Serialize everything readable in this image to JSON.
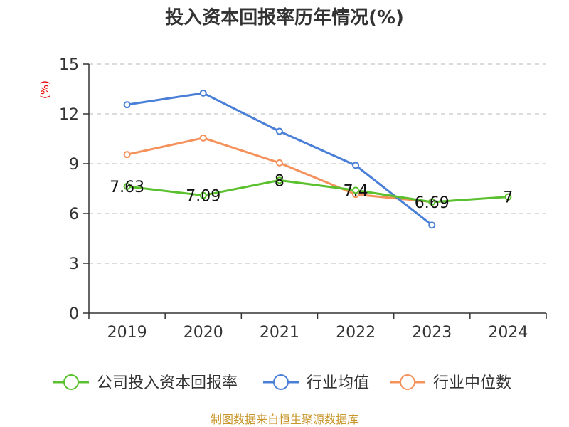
{
  "chart_data": {
    "type": "line",
    "title": "投入资本回报率历年情况(%)",
    "ylabel": "(%)",
    "xlabel": "",
    "categories": [
      "2019",
      "2020",
      "2021",
      "2022",
      "2023",
      "2024"
    ],
    "ylim": [
      0,
      15
    ],
    "yticks": [
      0,
      3,
      6,
      9,
      12,
      15
    ],
    "grid": true,
    "legend_position": "bottom",
    "series": [
      {
        "name": "公司投入资本回报率",
        "color": "#5ac02d",
        "values": [
          7.63,
          7.09,
          8,
          7.4,
          6.69,
          7
        ],
        "data_labels": [
          "7.63",
          "7.09",
          "8",
          "7.4",
          "6.69",
          "7"
        ]
      },
      {
        "name": "行业均值",
        "color": "#4a7fd8",
        "values": [
          12.55,
          13.25,
          10.95,
          8.9,
          5.3,
          null
        ]
      },
      {
        "name": "行业中位数",
        "color": "#f5915a",
        "values": [
          9.55,
          10.55,
          9.05,
          7.15,
          6.7,
          null
        ]
      }
    ]
  },
  "source": "制图数据来自恒生聚源数据库"
}
